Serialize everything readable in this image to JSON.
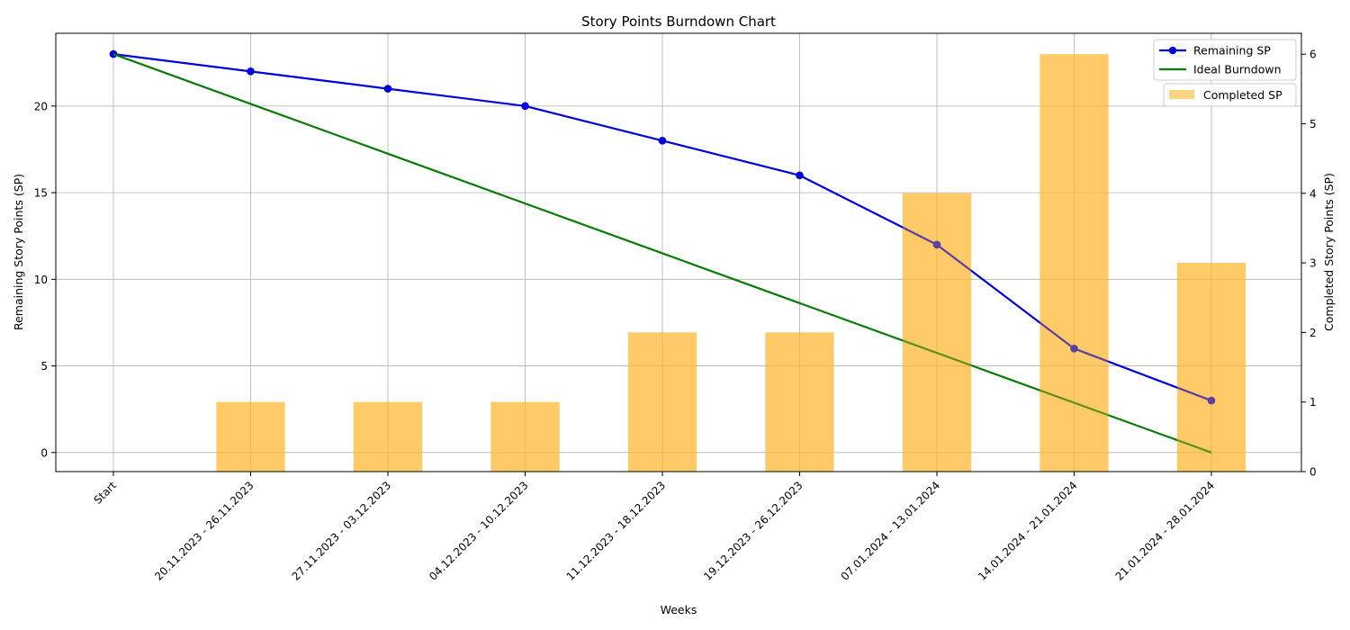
{
  "chart_data": {
    "type": "bar+line",
    "title": "Story Points Burndown Chart",
    "xlabel": "Weeks",
    "ylabel_left": "Remaining Story Points (SP)",
    "ylabel_right": "Completed Story Points (SP)",
    "categories": [
      "Start",
      "20.11.2023 - 26.11.2023",
      "27.11.2023 - 03.12.2023",
      "04.12.2023 - 10.12.2023",
      "11.12.2023 - 18.12.2023",
      "19.12.2023 - 26.12.2023",
      "07.01.2024 - 13.01.2024",
      "14.01.2024 - 21.01.2024",
      "21.01.2024 - 28.01.2024"
    ],
    "y_left_lim": [
      -1.1,
      24.2
    ],
    "y_left_ticks": [
      0,
      5,
      10,
      15,
      20
    ],
    "y_right_lim": [
      0,
      6.3
    ],
    "y_right_ticks": [
      0,
      1,
      2,
      3,
      4,
      5,
      6
    ],
    "grid": true,
    "series": [
      {
        "name": "Remaining SP",
        "type": "line",
        "axis": "left",
        "color": "#0000dd",
        "marker": "circle",
        "values": [
          23,
          22,
          21,
          20,
          18,
          16,
          12,
          6,
          3
        ]
      },
      {
        "name": "Ideal Burndown",
        "type": "line",
        "axis": "left",
        "color": "#0a7a0a",
        "values": [
          23,
          20.125,
          17.25,
          14.375,
          11.5,
          8.625,
          5.75,
          2.875,
          0
        ]
      },
      {
        "name": "Completed SP",
        "type": "bar",
        "axis": "right",
        "color": "#ffb732",
        "opacity": 0.6,
        "values": [
          0,
          1,
          1,
          1,
          2,
          2,
          4,
          6,
          3
        ]
      }
    ],
    "legend_placement": "top-right"
  }
}
